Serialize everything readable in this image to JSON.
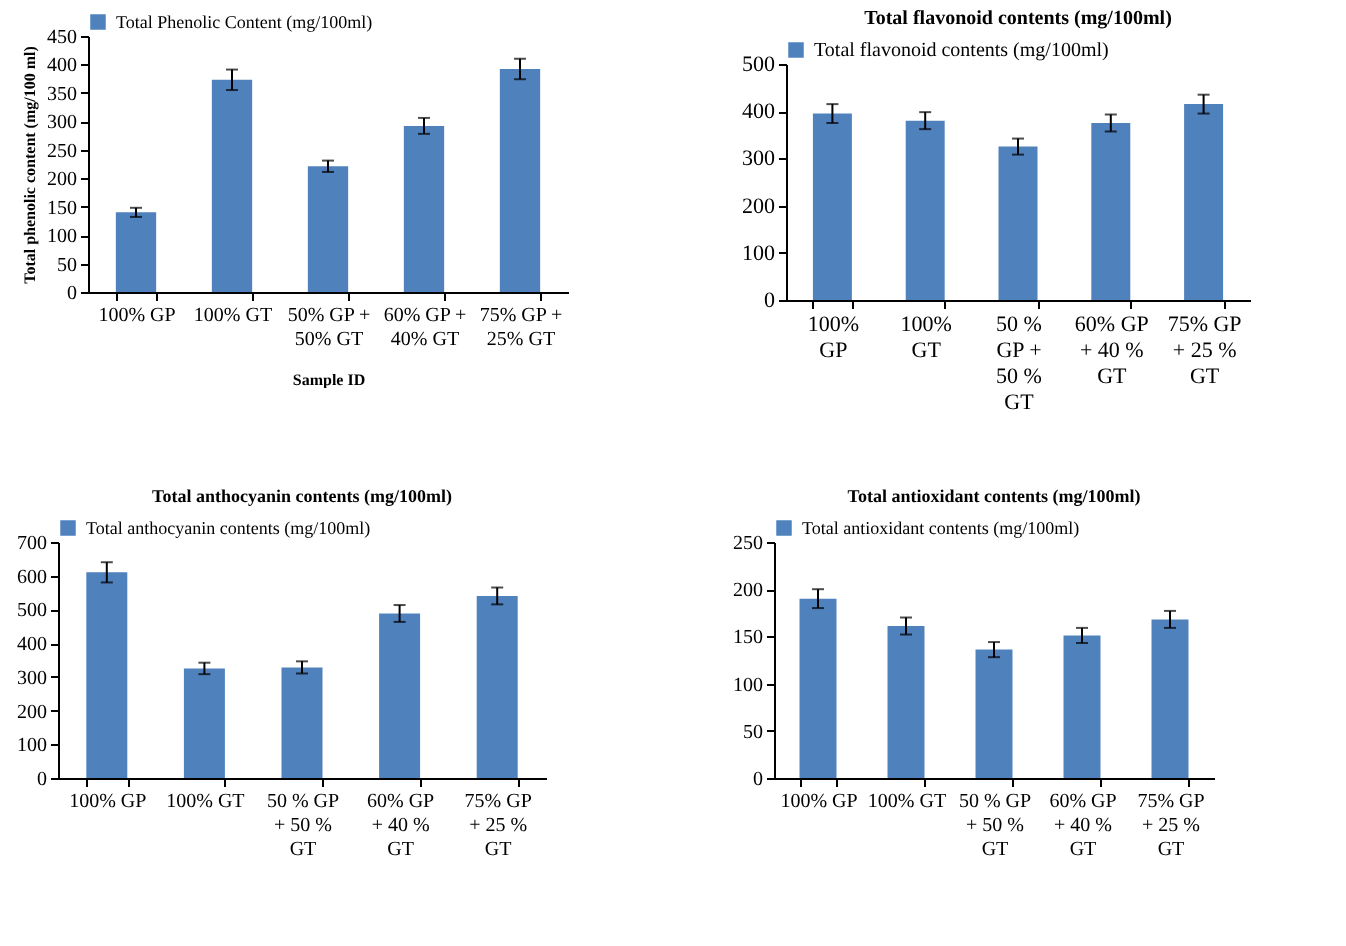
{
  "chart_data": [
    {
      "type": "bar",
      "xlabel": "Sample ID",
      "ylabel": "Total phenolic content (mg/100 ml)",
      "categories": [
        "100% GP",
        "100% GT",
        "50% GP + 50% GT",
        "60% GP + 40% GT",
        "75% GP + 25% GT"
      ],
      "series": [
        {
          "name": "Total Phenolic Content  (mg/100ml)",
          "color": "#4f81bd",
          "values": [
            140,
            373,
            221,
            292,
            392
          ],
          "errors": [
            8,
            18,
            10,
            14,
            18
          ]
        }
      ],
      "ylim": [
        0,
        450
      ],
      "yticks": [
        0,
        50,
        100,
        150,
        200,
        250,
        300,
        350,
        400,
        450
      ],
      "legend": "top"
    },
    {
      "type": "bar",
      "title": "Total flavonoid contents (mg/100ml)",
      "categories": [
        "100% GP",
        "100% GT",
        "50 % GP + 50 % GT",
        "60% GP + 40 % GT",
        "75% GP + 25 % GT"
      ],
      "series": [
        {
          "name": "Total flavonoid contents (mg/100ml)",
          "color": "#4f81bd",
          "values": [
            395,
            380,
            325,
            375,
            415
          ],
          "errors": [
            20,
            18,
            17,
            18,
            20
          ]
        }
      ],
      "ylim": [
        0,
        500
      ],
      "yticks": [
        0,
        100,
        200,
        300,
        400,
        500
      ],
      "legend": "top"
    },
    {
      "type": "bar",
      "title": "Total anthocyanin contents (mg/100ml)",
      "categories": [
        "100% GP",
        "100% GT",
        "50 % GP + 50 % GT",
        "60% GP + 40 % GT",
        "75% GP + 25 % GT"
      ],
      "series": [
        {
          "name": "Total anthocyanin contents (mg/100ml)",
          "color": "#4f81bd",
          "values": [
            610,
            325,
            328,
            488,
            540
          ],
          "errors": [
            30,
            17,
            18,
            25,
            25
          ]
        }
      ],
      "ylim": [
        0,
        700
      ],
      "yticks": [
        0,
        100,
        200,
        300,
        400,
        500,
        600,
        700
      ],
      "legend": "top"
    },
    {
      "type": "bar",
      "title": "Total antioxidant contents (mg/100ml)",
      "categories": [
        "100% GP",
        "100% GT",
        "50 % GP + 50 % GT",
        "60% GP + 40 % GT",
        "75% GP + 25 % GT"
      ],
      "series": [
        {
          "name": "Total antioxidant contents (mg/100ml)",
          "color": "#4f81bd",
          "values": [
            190,
            161,
            136,
            151,
            168
          ],
          "errors": [
            10,
            9,
            8,
            8,
            9
          ]
        }
      ],
      "ylim": [
        0,
        250
      ],
      "yticks": [
        0,
        50,
        100,
        150,
        200,
        250
      ],
      "legend": "top"
    }
  ]
}
